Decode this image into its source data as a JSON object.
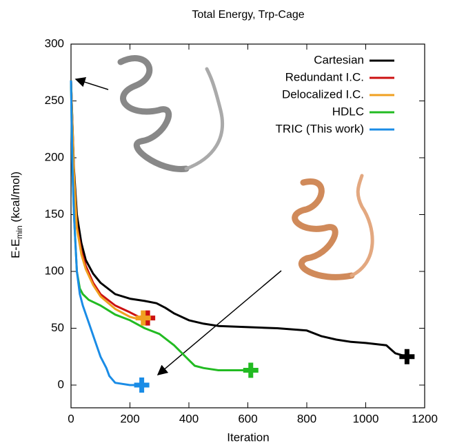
{
  "chart_data": {
    "type": "line",
    "title": "Total Energy, Trp-Cage",
    "x_label": "Iteration",
    "y_label": [
      "E-E",
      "min",
      " (kcal/mol)"
    ],
    "xlim": [
      0,
      1200
    ],
    "xticks": [
      0,
      200,
      400,
      600,
      800,
      1000,
      1200
    ],
    "ylim": [
      -20,
      300
    ],
    "yticks": [
      0,
      50,
      100,
      150,
      200,
      250,
      300
    ],
    "legend": "upper right",
    "end_markers": true,
    "series": [
      {
        "name": "Cartesian",
        "color": "#000000",
        "x": [
          0,
          10,
          20,
          35,
          50,
          75,
          100,
          150,
          200,
          250,
          290,
          320,
          350,
          400,
          450,
          500,
          600,
          700,
          800,
          850,
          900,
          950,
          1000,
          1070,
          1100,
          1140
        ],
        "values": [
          268,
          190,
          150,
          125,
          110,
          98,
          90,
          80,
          76,
          74,
          72,
          68,
          63,
          57,
          54,
          52,
          51,
          50,
          48,
          43,
          40,
          38,
          37,
          35,
          28,
          25
        ]
      },
      {
        "name": "Redundant I.C.",
        "color": "#cc1111",
        "x": [
          0,
          10,
          20,
          35,
          50,
          75,
          100,
          150,
          200,
          230,
          260
        ],
        "values": [
          268,
          185,
          140,
          118,
          105,
          90,
          80,
          70,
          64,
          60,
          59
        ]
      },
      {
        "name": "Delocalized I.C.",
        "color": "#f0a020",
        "x": [
          0,
          10,
          20,
          35,
          50,
          75,
          100,
          150,
          200,
          230,
          245
        ],
        "values": [
          268,
          185,
          138,
          115,
          102,
          88,
          78,
          67,
          60,
          58,
          59
        ]
      },
      {
        "name": "HDLC",
        "color": "#22bb22",
        "x": [
          0,
          5,
          10,
          20,
          30,
          40,
          60,
          100,
          150,
          200,
          250,
          300,
          350,
          400,
          420,
          450,
          500,
          610
        ],
        "values": [
          268,
          190,
          150,
          100,
          85,
          80,
          75,
          70,
          62,
          57,
          50,
          45,
          35,
          22,
          17,
          15,
          13,
          13
        ]
      },
      {
        "name": "TRIC (This work)",
        "color": "#1a8ce6",
        "x": [
          0,
          5,
          10,
          20,
          30,
          40,
          60,
          80,
          100,
          120,
          130,
          150,
          200,
          240
        ],
        "values": [
          268,
          190,
          150,
          100,
          80,
          70,
          55,
          40,
          25,
          15,
          8,
          2,
          0,
          0
        ]
      }
    ]
  }
}
